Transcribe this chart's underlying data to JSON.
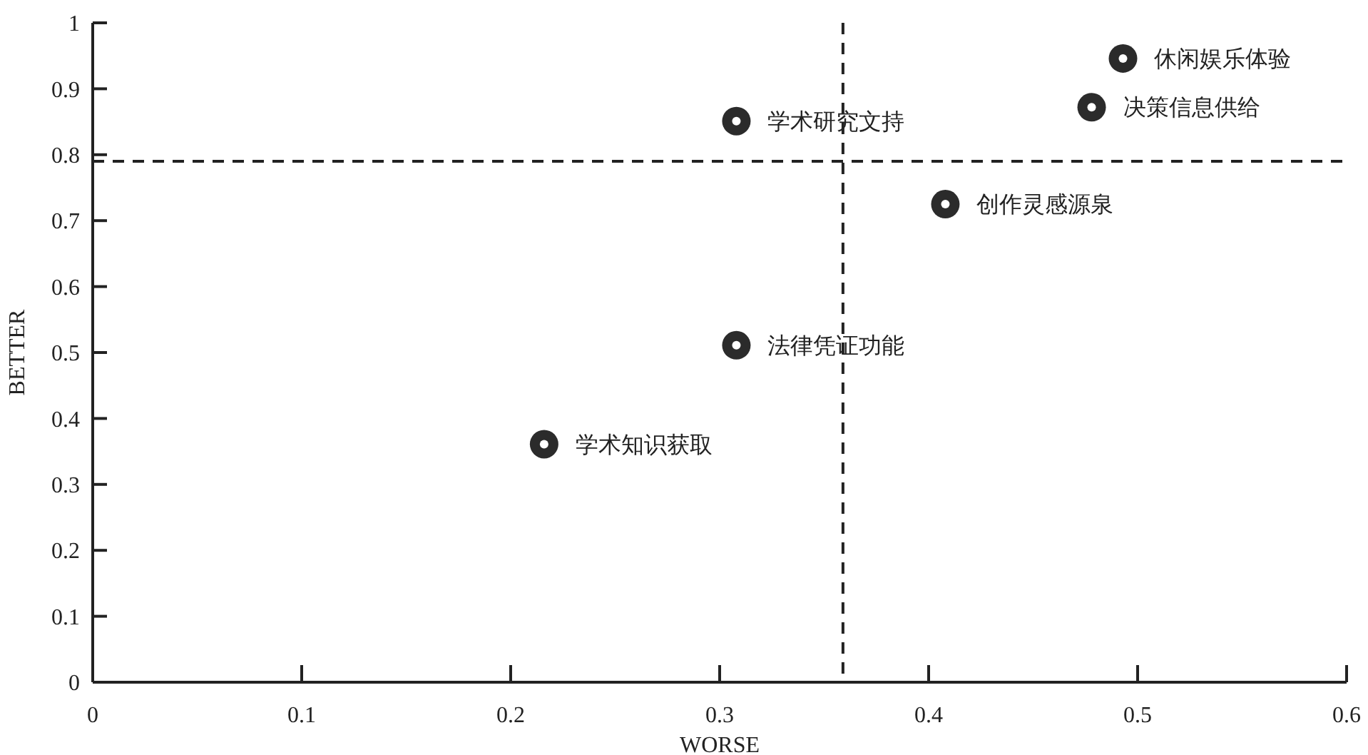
{
  "chart_data": {
    "type": "scatter",
    "xlabel": "WORSE",
    "ylabel": "BETTER",
    "x": [
      0.493,
      0.478,
      0.308,
      0.408,
      0.308,
      0.216
    ],
    "series": [
      {
        "color": "#2b2b2b",
        "values": [
          0.946,
          0.872,
          0.851,
          0.725,
          0.511,
          0.361
        ]
      }
    ],
    "annotations": [
      {
        "text": "休闲娱乐体验",
        "x": 0.493,
        "y": 0.946
      },
      {
        "text": "决策信息供给",
        "x": 0.478,
        "y": 0.872
      },
      {
        "text": "学术研究文持",
        "x": 0.308,
        "y": 0.851
      },
      {
        "text": "创作灵感源泉",
        "x": 0.408,
        "y": 0.725
      },
      {
        "text": "法律凭证功能",
        "x": 0.308,
        "y": 0.511
      },
      {
        "text": "学术知识获取",
        "x": 0.216,
        "y": 0.361
      }
    ],
    "ref_lines": [
      {
        "axis": "x",
        "value": 0.359,
        "line_style": "dashed",
        "color": "#222222"
      },
      {
        "axis": "y",
        "value": 0.79,
        "line_style": "dashed",
        "color": "#222222"
      }
    ],
    "xlim": [
      0,
      0.6
    ],
    "ylim": [
      0,
      1
    ],
    "xticks": [
      0,
      0.1,
      0.2,
      0.3,
      0.4,
      0.5,
      0.6
    ],
    "yticks": [
      0,
      0.1,
      0.2,
      0.3,
      0.4,
      0.5,
      0.6,
      0.7,
      0.8,
      0.9,
      1
    ],
    "marker": "circle",
    "grid": false
  }
}
